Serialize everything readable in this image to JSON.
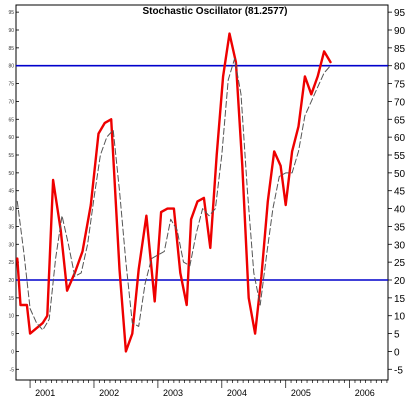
{
  "chart_data": {
    "type": "line",
    "title": "Stochastic Oscillator (81.2577)",
    "x_ticks": [
      "2001",
      "2002",
      "2003",
      "2004",
      "2005",
      "2006"
    ],
    "y_ticks": [
      -5,
      0,
      5,
      10,
      15,
      20,
      25,
      30,
      35,
      40,
      45,
      50,
      55,
      60,
      65,
      70,
      75,
      80,
      85,
      90,
      95
    ],
    "ylim": [
      -8,
      97
    ],
    "xlim": [
      2000.78,
      2006.6
    ],
    "reference_lines": [
      {
        "value": 80,
        "color": "#0000cc"
      },
      {
        "value": 20,
        "color": "#0000cc"
      }
    ],
    "grid": false,
    "series": [
      {
        "style": "solid",
        "color": "#ee0000",
        "points": [
          [
            2000.8,
            26
          ],
          [
            2000.85,
            13
          ],
          [
            2000.95,
            13
          ],
          [
            2001.0,
            5
          ],
          [
            2001.2,
            8
          ],
          [
            2001.27,
            10
          ],
          [
            2001.36,
            48
          ],
          [
            2001.48,
            34
          ],
          [
            2001.58,
            17
          ],
          [
            2001.7,
            22
          ],
          [
            2001.82,
            28
          ],
          [
            2001.95,
            41
          ],
          [
            2002.07,
            61
          ],
          [
            2002.17,
            64
          ],
          [
            2002.27,
            65
          ],
          [
            2002.4,
            23
          ],
          [
            2002.5,
            0
          ],
          [
            2002.6,
            5
          ],
          [
            2002.7,
            23
          ],
          [
            2002.82,
            38
          ],
          [
            2002.95,
            14
          ],
          [
            2003.05,
            39
          ],
          [
            2003.15,
            40
          ],
          [
            2003.25,
            40
          ],
          [
            2003.35,
            22
          ],
          [
            2003.45,
            13
          ],
          [
            2003.52,
            37
          ],
          [
            2003.62,
            42
          ],
          [
            2003.72,
            43
          ],
          [
            2003.82,
            29
          ],
          [
            2003.92,
            55
          ],
          [
            2004.02,
            77
          ],
          [
            2004.12,
            89
          ],
          [
            2004.22,
            81
          ],
          [
            2004.32,
            52
          ],
          [
            2004.42,
            15
          ],
          [
            2004.52,
            5
          ],
          [
            2004.62,
            21
          ],
          [
            2004.72,
            42
          ],
          [
            2004.82,
            56
          ],
          [
            2004.92,
            52
          ],
          [
            2005.0,
            41
          ],
          [
            2005.1,
            56
          ],
          [
            2005.2,
            63
          ],
          [
            2005.3,
            77
          ],
          [
            2005.4,
            72
          ],
          [
            2005.5,
            77
          ],
          [
            2005.6,
            84
          ],
          [
            2005.7,
            81
          ]
        ]
      },
      {
        "style": "dashed",
        "color": "#555555",
        "points": [
          [
            2000.8,
            42
          ],
          [
            2000.9,
            28
          ],
          [
            2001.0,
            12
          ],
          [
            2001.1,
            8
          ],
          [
            2001.2,
            6
          ],
          [
            2001.3,
            9
          ],
          [
            2001.4,
            26
          ],
          [
            2001.5,
            38
          ],
          [
            2001.6,
            30
          ],
          [
            2001.7,
            21
          ],
          [
            2001.8,
            22
          ],
          [
            2001.9,
            30
          ],
          [
            2002.0,
            43
          ],
          [
            2002.1,
            55
          ],
          [
            2002.2,
            60
          ],
          [
            2002.3,
            62
          ],
          [
            2002.4,
            45
          ],
          [
            2002.5,
            25
          ],
          [
            2002.6,
            8
          ],
          [
            2002.7,
            7
          ],
          [
            2002.8,
            19
          ],
          [
            2002.9,
            26
          ],
          [
            2003.0,
            27
          ],
          [
            2003.1,
            28
          ],
          [
            2003.2,
            37
          ],
          [
            2003.3,
            34
          ],
          [
            2003.4,
            25
          ],
          [
            2003.5,
            24
          ],
          [
            2003.6,
            33
          ],
          [
            2003.7,
            40
          ],
          [
            2003.8,
            38
          ],
          [
            2003.9,
            40
          ],
          [
            2004.0,
            55
          ],
          [
            2004.1,
            76
          ],
          [
            2004.2,
            82
          ],
          [
            2004.3,
            72
          ],
          [
            2004.4,
            45
          ],
          [
            2004.5,
            22
          ],
          [
            2004.6,
            13
          ],
          [
            2004.7,
            27
          ],
          [
            2004.8,
            40
          ],
          [
            2004.9,
            49
          ],
          [
            2005.0,
            50
          ],
          [
            2005.1,
            50
          ],
          [
            2005.2,
            56
          ],
          [
            2005.3,
            66
          ],
          [
            2005.4,
            70
          ],
          [
            2005.5,
            74
          ],
          [
            2005.6,
            78
          ],
          [
            2005.7,
            80
          ]
        ]
      }
    ]
  }
}
